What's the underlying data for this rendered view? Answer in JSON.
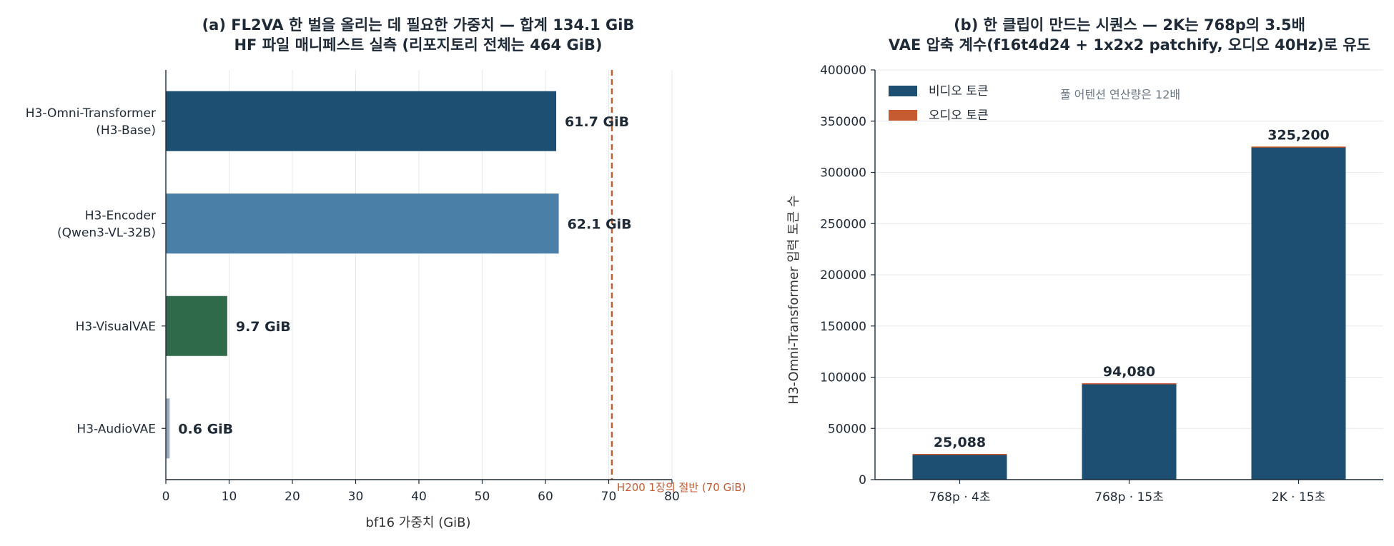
{
  "chart_data": [
    {
      "type": "bar",
      "orientation": "horizontal",
      "title": "(a) FL2VA 한 벌을 올리는 데 필요한 가중치 — 합계 134.1 GiB",
      "subtitle": "HF 파일 매니페스트 실측 (리포지토리 전체는 464 GiB)",
      "xlabel": "bf16 가중치 (GiB)",
      "xlim": [
        0,
        80
      ],
      "xticks": [
        "0",
        "10",
        "20",
        "30",
        "40",
        "50",
        "60",
        "70",
        "80"
      ],
      "grid": "vertical",
      "categories": [
        [
          "H3-Omni-Transformer",
          "(H3-Base)"
        ],
        [
          "H3-Encoder",
          "(Qwen3-VL-32B)"
        ],
        [
          "H3-VisualVAE"
        ],
        [
          "H3-AudioVAE"
        ]
      ],
      "values": [
        61.7,
        62.1,
        9.7,
        0.6
      ],
      "value_labels": [
        "61.7 GiB",
        "62.1 GiB",
        "9.7 GiB",
        "0.6 GiB"
      ],
      "colors": [
        "#1c4f72",
        "#4a7fa8",
        "#2f6a4b",
        "#9aaabd"
      ],
      "reference_line": {
        "value": 70.5,
        "label": "H200 1장의 절반 (70 GiB)",
        "color": "#c65a30"
      }
    },
    {
      "type": "bar",
      "stacked": true,
      "title": "(b) 한 클립이 만드는 시퀀스 — 2K는 768p의 3.5배",
      "subtitle": "VAE 압축 계수(f16t4d24 + 1x2x2 patchify, 오디오 40Hz)로 유도",
      "ylabel": "H3-Omni-Transformer 입력 토큰 수",
      "ylim": [
        0,
        400000
      ],
      "yticks": [
        "0",
        "50000",
        "100000",
        "150000",
        "200000",
        "250000",
        "300000",
        "350000",
        "400000"
      ],
      "grid": "horizontal",
      "categories": [
        "768p · 4초",
        "768p · 15초",
        "2K · 15초"
      ],
      "series": [
        {
          "name": "비디오 토큰",
          "values": [
            24928,
            93480,
            324600
          ],
          "color": "#1c4f72"
        },
        {
          "name": "오디오 토큰",
          "values": [
            160,
            600,
            600
          ],
          "color": "#c65a30"
        }
      ],
      "totals_labels": [
        "25,088",
        "94,080",
        "325,200"
      ],
      "legend": "top-left",
      "annotation": "풀 어텐션 연산량은 12배"
    }
  ]
}
